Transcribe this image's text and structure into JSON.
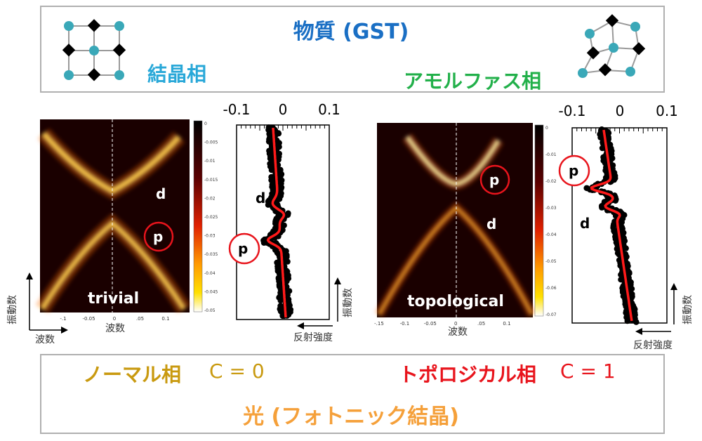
{
  "top": {
    "title": "物質 (GST)",
    "crystal_label": "結晶相",
    "amorphous_label": "アモルファス相"
  },
  "bottom": {
    "normal_label": "ノーマル相",
    "normal_c": "C = 0",
    "topo_label": "トポロジカル相",
    "topo_c": "C = 1",
    "light_title": "光 (フォトニック結晶)"
  },
  "left_map": {
    "band_d": "d",
    "band_p": "p",
    "phase_label": "trivial",
    "x_ticks": [
      "-.1",
      "-0.05",
      "0",
      ".05",
      "0.1"
    ],
    "x_label": "波数",
    "colorbar_ticks": [
      "0",
      "-0.005",
      "-0.01",
      "-0.015",
      "-0.02",
      "-0.025",
      "-0.03",
      "-0.035",
      "-0.04",
      "-0.045",
      "-0.05"
    ]
  },
  "left_spectrum": {
    "x_ticks": [
      "-0.1",
      "0",
      "0.1"
    ],
    "band_d": "d",
    "band_p": "p",
    "x_label": "反射強度",
    "y_label": "振動数"
  },
  "right_map": {
    "band_p": "p",
    "band_d": "d",
    "phase_label": "topological",
    "x_ticks": [
      "-.15",
      "-0.1",
      "-0.05",
      "0",
      ".05",
      "0.1"
    ],
    "x_label": "波数",
    "colorbar_ticks": [
      "0",
      "-0.01",
      "-0.02",
      "-0.03",
      "-0.04",
      "-0.05",
      "-0.06",
      "-0.07"
    ]
  },
  "right_spectrum": {
    "x_ticks": [
      "-0.1",
      "0",
      "0.1"
    ],
    "band_p": "p",
    "band_d": "d",
    "x_label": "反射強度",
    "y_label": "振動数"
  },
  "axis_labels": {
    "left_y": "振動数",
    "left_x": "波数"
  },
  "colors": {
    "blue": "#1a6fc4",
    "cyan": "#29a8d8",
    "green": "#22b04a",
    "gold": "#c99a10",
    "red": "#e8141c",
    "orange": "#f5a03a",
    "teal_atom": "#3aa8b8",
    "fit_red": "#ff1a1a"
  }
}
